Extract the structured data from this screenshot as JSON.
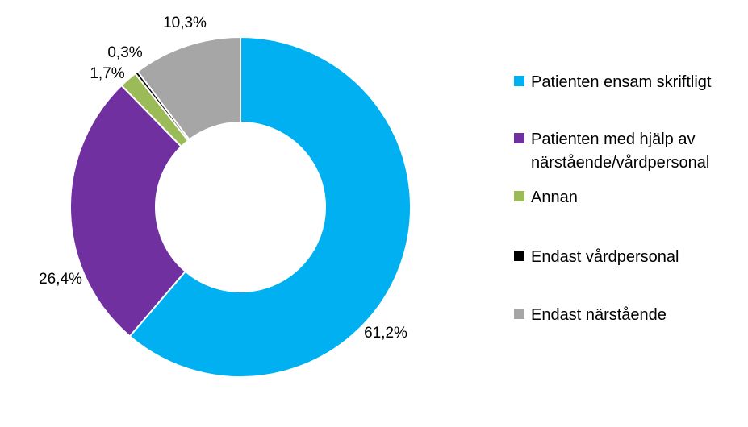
{
  "chart_data": {
    "type": "pie",
    "variant": "donut",
    "title": "",
    "legend_position": "right",
    "series": [
      {
        "categories": [
          "Patienten ensam skriftligt",
          "Patienten med hjälp av närstående/vårdpersonal",
          "Annan",
          "Endast vårdpersonal",
          "Endast närstående"
        ],
        "values": [
          61.2,
          26.4,
          1.7,
          0.3,
          10.3
        ],
        "labels": [
          "61,2%",
          "26,4%",
          "1,7%",
          "0,3%",
          "10,3%"
        ],
        "colors": [
          "#00B0F0",
          "#7030A0",
          "#9BBB59",
          "#000000",
          "#A6A6A6"
        ]
      }
    ]
  },
  "legend": {
    "entries": [
      {
        "lines": [
          "Patienten ensam skriftligt"
        ],
        "color": "#00B0F0"
      },
      {
        "lines": [
          "Patienten med hjälp av",
          "närstående/vårdpersonal"
        ],
        "color": "#7030A0"
      },
      {
        "lines": [
          "Annan"
        ],
        "color": "#9BBB59"
      },
      {
        "lines": [
          "Endast vårdpersonal"
        ],
        "color": "#000000"
      },
      {
        "lines": [
          "Endast närstående"
        ],
        "color": "#A6A6A6"
      }
    ]
  }
}
